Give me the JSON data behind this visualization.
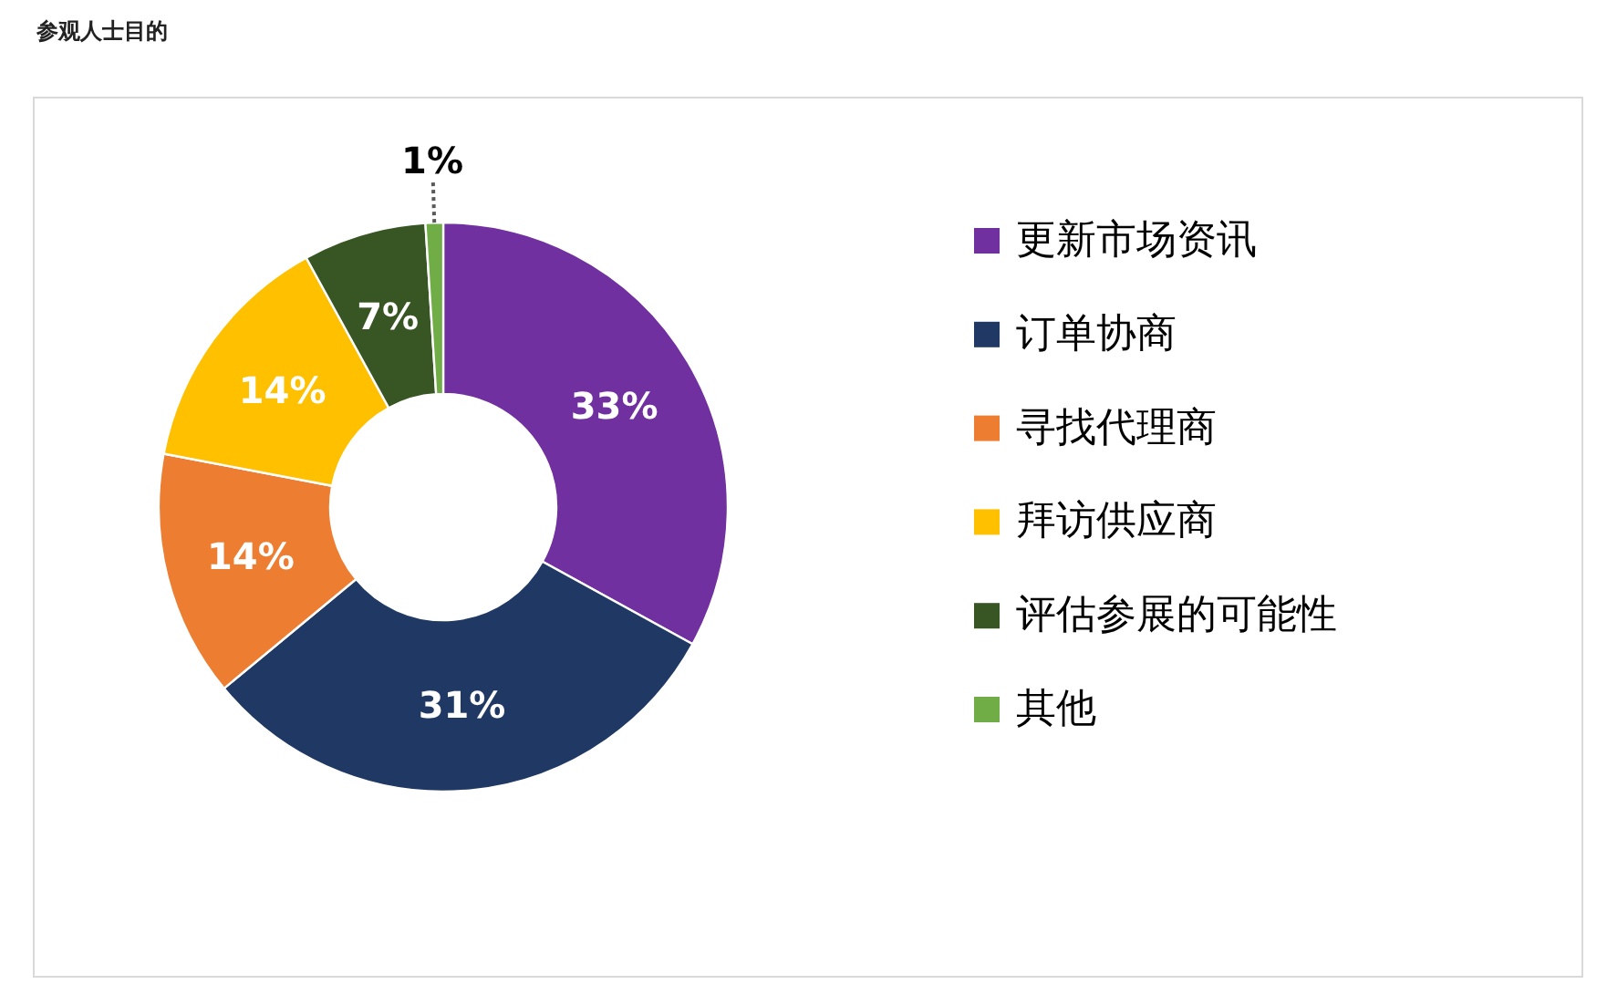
{
  "chart_data": {
    "type": "donut",
    "title": "参观人士目的",
    "categories": [
      "更新市场资讯",
      "订单协商",
      "寻找代理商",
      "拜访供应商",
      "评估参展的可能性",
      "其他"
    ],
    "values": [
      33,
      31,
      14,
      14,
      7,
      1
    ],
    "colors": [
      "#7030a0",
      "#1f3864",
      "#ed7d31",
      "#ffc000",
      "#375623",
      "#70ad47"
    ],
    "value_labels": [
      "33%",
      "31%",
      "14%",
      "14%",
      "7%",
      "1%"
    ],
    "legend": "right"
  }
}
